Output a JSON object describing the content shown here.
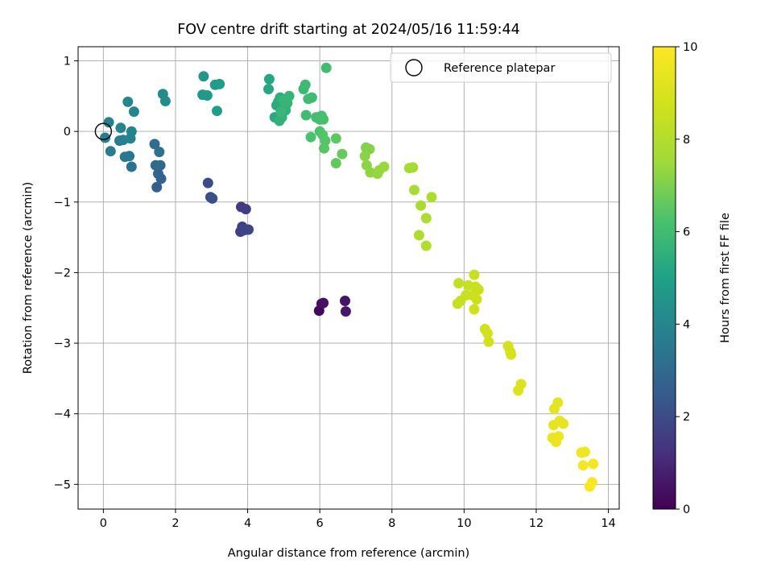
{
  "chart_data": {
    "type": "scatter",
    "title": "FOV centre drift starting at 2024/05/16 11:59:44",
    "xlabel": "Angular distance from reference (arcmin)",
    "ylabel": "Rotation from reference (arcmin)",
    "xlim": [
      -0.7,
      14.3
    ],
    "ylim": [
      -5.35,
      1.2
    ],
    "xticks": [
      0,
      2,
      4,
      6,
      8,
      10,
      12,
      14
    ],
    "yticks": [
      1,
      0,
      -1,
      -2,
      -3,
      -4,
      -5
    ],
    "grid": true,
    "legend": {
      "placement": "top-right",
      "entries": [
        {
          "label": "Reference platepar",
          "marker": "open-circle",
          "x": 0,
          "y": 0
        }
      ]
    },
    "colorbar": {
      "label": "Hours from first FF file",
      "colormap": "viridis",
      "range": [
        0,
        10
      ],
      "ticks": [
        0,
        2,
        4,
        6,
        8,
        10
      ]
    },
    "series": [
      {
        "points": [
          [
            5.98,
            -2.54,
            0.2
          ],
          [
            6.05,
            -2.44,
            0.3
          ],
          [
            6.1,
            -2.43,
            0.4
          ],
          [
            6.7,
            -2.4,
            0.5
          ],
          [
            6.72,
            -2.55,
            0.6
          ],
          [
            3.82,
            -1.07,
            1.5
          ],
          [
            3.95,
            -1.1,
            1.55
          ],
          [
            3.85,
            -1.35,
            1.6
          ],
          [
            3.8,
            -1.42,
            1.65
          ],
          [
            3.88,
            -1.38,
            1.7
          ],
          [
            4.02,
            -1.39,
            1.75
          ],
          [
            3.9,
            -1.4,
            1.8
          ],
          [
            2.9,
            -0.73,
            2.0
          ],
          [
            2.97,
            -0.93,
            2.1
          ],
          [
            3.02,
            -0.95,
            2.15
          ],
          [
            1.48,
            -0.79,
            2.6
          ],
          [
            1.6,
            -0.67,
            2.7
          ],
          [
            1.52,
            -0.6,
            2.8
          ],
          [
            1.58,
            -0.48,
            2.9
          ],
          [
            1.45,
            -0.48,
            3.0
          ],
          [
            1.42,
            -0.18,
            3.1
          ],
          [
            1.55,
            -0.29,
            3.2
          ],
          [
            0.78,
            -0.5,
            3.3
          ],
          [
            0.72,
            -0.35,
            3.4
          ],
          [
            0.6,
            -0.36,
            3.5
          ],
          [
            0.45,
            -0.13,
            3.6
          ],
          [
            0.2,
            -0.28,
            3.65
          ],
          [
            0.05,
            -0.09,
            3.7
          ],
          [
            0.15,
            0.13,
            3.75
          ],
          [
            0.55,
            -0.12,
            3.8
          ],
          [
            0.75,
            -0.1,
            3.85
          ],
          [
            0.78,
            0.0,
            3.9
          ],
          [
            0.48,
            0.05,
            3.95
          ],
          [
            0.68,
            0.42,
            4.0
          ],
          [
            0.85,
            0.28,
            4.05
          ],
          [
            1.65,
            0.53,
            4.2
          ],
          [
            1.72,
            0.43,
            4.25
          ],
          [
            2.78,
            0.78,
            4.6
          ],
          [
            2.75,
            0.52,
            4.7
          ],
          [
            2.88,
            0.51,
            4.75
          ],
          [
            3.1,
            0.66,
            4.8
          ],
          [
            3.22,
            0.67,
            4.85
          ],
          [
            3.15,
            0.29,
            4.9
          ],
          [
            4.6,
            0.74,
            5.2
          ],
          [
            4.58,
            0.6,
            5.25
          ],
          [
            4.75,
            0.2,
            5.3
          ],
          [
            4.8,
            0.37,
            5.35
          ],
          [
            4.85,
            0.42,
            5.4
          ],
          [
            4.9,
            0.48,
            5.45
          ],
          [
            5.0,
            0.35,
            5.5
          ],
          [
            5.05,
            0.3,
            5.55
          ],
          [
            4.95,
            0.2,
            5.58
          ],
          [
            4.88,
            0.15,
            5.6
          ],
          [
            5.1,
            0.4,
            5.65
          ],
          [
            5.15,
            0.5,
            5.7
          ],
          [
            5.08,
            0.45,
            5.73
          ],
          [
            5.0,
            0.44,
            5.75
          ],
          [
            4.92,
            0.28,
            5.78
          ],
          [
            5.55,
            0.6,
            5.85
          ],
          [
            5.6,
            0.66,
            5.88
          ],
          [
            5.68,
            0.46,
            5.92
          ],
          [
            5.78,
            0.48,
            5.95
          ],
          [
            5.62,
            0.23,
            5.98
          ],
          [
            6.18,
            0.9,
            6.05
          ],
          [
            5.9,
            0.2,
            6.1
          ],
          [
            6.0,
            0.17,
            6.12
          ],
          [
            6.05,
            0.22,
            6.15
          ],
          [
            6.1,
            0.17,
            6.18
          ],
          [
            5.75,
            -0.08,
            6.25
          ],
          [
            6.0,
            0.0,
            6.3
          ],
          [
            6.08,
            -0.05,
            6.35
          ],
          [
            6.15,
            -0.13,
            6.4
          ],
          [
            6.12,
            -0.24,
            6.45
          ],
          [
            6.45,
            -0.1,
            6.55
          ],
          [
            6.45,
            -0.45,
            6.6
          ],
          [
            6.62,
            -0.32,
            6.65
          ],
          [
            7.28,
            -0.23,
            7.05
          ],
          [
            7.38,
            -0.25,
            7.1
          ],
          [
            7.25,
            -0.35,
            7.15
          ],
          [
            7.3,
            -0.48,
            7.2
          ],
          [
            7.4,
            -0.58,
            7.25
          ],
          [
            7.6,
            -0.6,
            7.3
          ],
          [
            7.65,
            -0.55,
            7.35
          ],
          [
            7.78,
            -0.5,
            7.4
          ],
          [
            8.48,
            -0.52,
            7.6
          ],
          [
            8.58,
            -0.51,
            7.65
          ],
          [
            8.62,
            -0.83,
            7.7
          ],
          [
            8.8,
            -1.05,
            7.75
          ],
          [
            8.95,
            -1.23,
            7.8
          ],
          [
            9.1,
            -0.93,
            7.85
          ],
          [
            8.75,
            -1.47,
            7.9
          ],
          [
            8.95,
            -1.62,
            7.95
          ],
          [
            9.85,
            -2.15,
            8.4
          ],
          [
            9.82,
            -2.44,
            8.45
          ],
          [
            9.9,
            -2.4,
            8.48
          ],
          [
            10.05,
            -2.32,
            8.5
          ],
          [
            10.12,
            -2.18,
            8.52
          ],
          [
            10.28,
            -2.03,
            8.55
          ],
          [
            10.32,
            -2.2,
            8.58
          ],
          [
            10.4,
            -2.24,
            8.6
          ],
          [
            10.22,
            -2.32,
            8.62
          ],
          [
            10.35,
            -2.38,
            8.65
          ],
          [
            10.28,
            -2.52,
            8.68
          ],
          [
            10.58,
            -2.8,
            8.75
          ],
          [
            10.65,
            -2.86,
            8.78
          ],
          [
            10.68,
            -2.98,
            8.8
          ],
          [
            11.22,
            -3.04,
            8.85
          ],
          [
            11.3,
            -3.16,
            8.88
          ],
          [
            11.28,
            -3.12,
            8.9
          ],
          [
            11.58,
            -3.58,
            9.05
          ],
          [
            11.5,
            -3.67,
            9.08
          ],
          [
            12.5,
            -3.93,
            9.3
          ],
          [
            12.6,
            -3.84,
            9.33
          ],
          [
            12.48,
            -4.16,
            9.36
          ],
          [
            12.65,
            -4.1,
            9.4
          ],
          [
            12.75,
            -4.14,
            9.43
          ],
          [
            12.45,
            -4.34,
            9.46
          ],
          [
            12.55,
            -4.4,
            9.49
          ],
          [
            12.62,
            -4.32,
            9.52
          ],
          [
            13.25,
            -4.55,
            9.65
          ],
          [
            13.35,
            -4.54,
            9.68
          ],
          [
            13.3,
            -4.73,
            9.72
          ],
          [
            13.58,
            -4.71,
            9.75
          ],
          [
            13.55,
            -4.97,
            9.85
          ],
          [
            13.48,
            -5.03,
            9.9
          ]
        ]
      }
    ]
  }
}
